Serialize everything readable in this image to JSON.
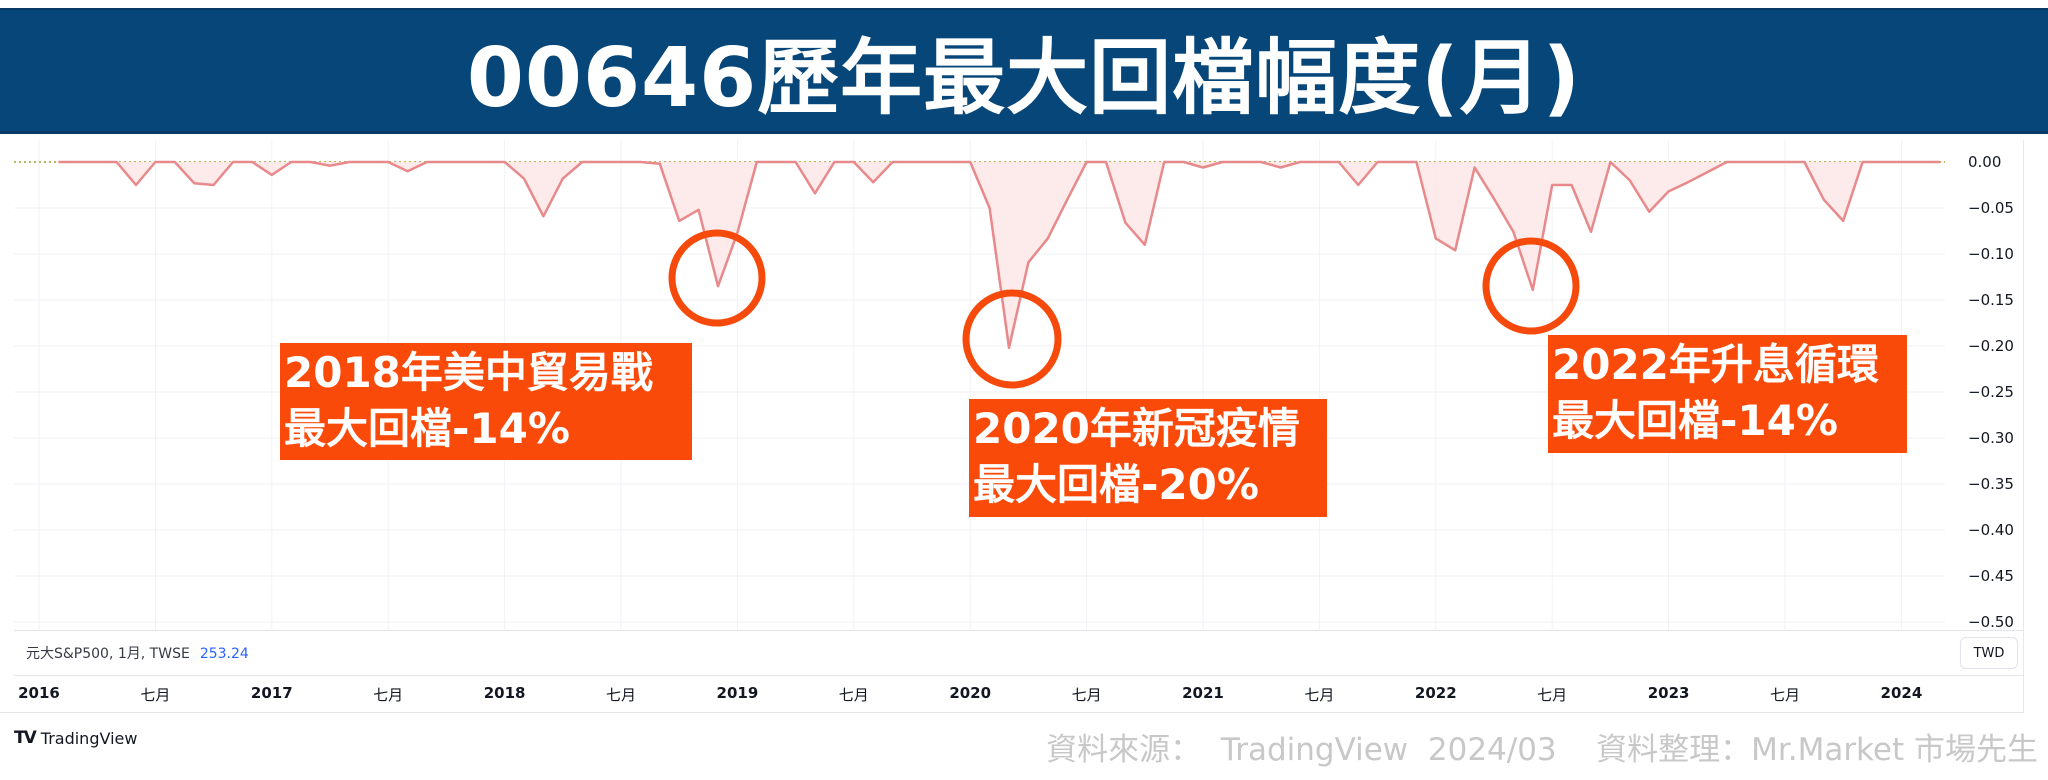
{
  "title": "00646歷年最大回檔幅度(月)",
  "legend": {
    "symbol_label": "元大S&P500, 1月, TWSE",
    "value": "253.24",
    "currency_button": "TWD"
  },
  "footer": {
    "brand": "TradingView",
    "source_note": "資料來源：  TradingView  2024/03    資料整理：Mr.Market 市場先生"
  },
  "colors": {
    "title_bg": "#064679",
    "line": "#e8898b",
    "fill": "#fde8e8",
    "zero_line": "#b8b860",
    "highlight": "#f64a0c",
    "legend_value": "#2962ff"
  },
  "annotations": [
    {
      "line1": "2018年美中貿易戰",
      "line2": "最大回檔-14%",
      "circle_month": "2018-12"
    },
    {
      "line1": "2020年新冠疫情",
      "line2": "最大回檔-20%",
      "circle_month": "2020-03"
    },
    {
      "line1": "2022年升息循環",
      "line2": "最大回檔-14%",
      "circle_month": "2022-06"
    }
  ],
  "chart_data": {
    "type": "area",
    "title": "00646歷年最大回檔幅度(月)",
    "series_name": "元大S&P500 月線回檔幅度",
    "xlabel": "",
    "ylabel": "",
    "ylim": [
      -0.5,
      0.0
    ],
    "y_ticks": [
      "0.00",
      "−0.05",
      "−0.10",
      "−0.15",
      "−0.20",
      "−0.25",
      "−0.30",
      "−0.35",
      "−0.40",
      "−0.45",
      "−0.50"
    ],
    "x_ticks": [
      "2016",
      "七月",
      "2017",
      "七月",
      "2018",
      "七月",
      "2019",
      "七月",
      "2020",
      "七月",
      "2021",
      "七月",
      "2022",
      "七月",
      "2023",
      "七月",
      "2024"
    ],
    "grid": true,
    "start_month": "2016-02",
    "values": [
      0,
      0,
      0,
      0,
      -0.025,
      0,
      0,
      -0.023,
      -0.025,
      0,
      0,
      -0.014,
      0,
      0,
      -0.004,
      0,
      0,
      0,
      -0.01,
      0,
      0,
      0,
      0,
      0,
      -0.018,
      -0.059,
      -0.018,
      0,
      0,
      0,
      0,
      -0.002,
      -0.064,
      -0.052,
      -0.135,
      -0.077,
      0,
      0,
      0,
      -0.034,
      0,
      0,
      -0.022,
      0,
      0,
      0,
      0,
      0,
      -0.05,
      -0.202,
      -0.109,
      -0.083,
      -0.041,
      0,
      0,
      -0.066,
      -0.09,
      0,
      0,
      -0.006,
      0,
      0,
      0,
      -0.006,
      0,
      0,
      0,
      -0.025,
      0,
      0,
      0,
      -0.083,
      -0.096,
      -0.006,
      -0.04,
      -0.076,
      -0.139,
      -0.025,
      -0.025,
      -0.076,
      0,
      -0.02,
      -0.054,
      -0.032,
      -0.022,
      -0.011,
      0,
      0,
      0,
      0,
      0,
      -0.041,
      -0.064,
      0,
      0,
      0,
      0,
      0
    ],
    "annotated_troughs": [
      {
        "month": "2018-12",
        "value": -0.135,
        "label": "-14%"
      },
      {
        "month": "2020-03",
        "value": -0.202,
        "label": "-20%"
      },
      {
        "month": "2022-06",
        "value": -0.139,
        "label": "-14%"
      }
    ]
  }
}
